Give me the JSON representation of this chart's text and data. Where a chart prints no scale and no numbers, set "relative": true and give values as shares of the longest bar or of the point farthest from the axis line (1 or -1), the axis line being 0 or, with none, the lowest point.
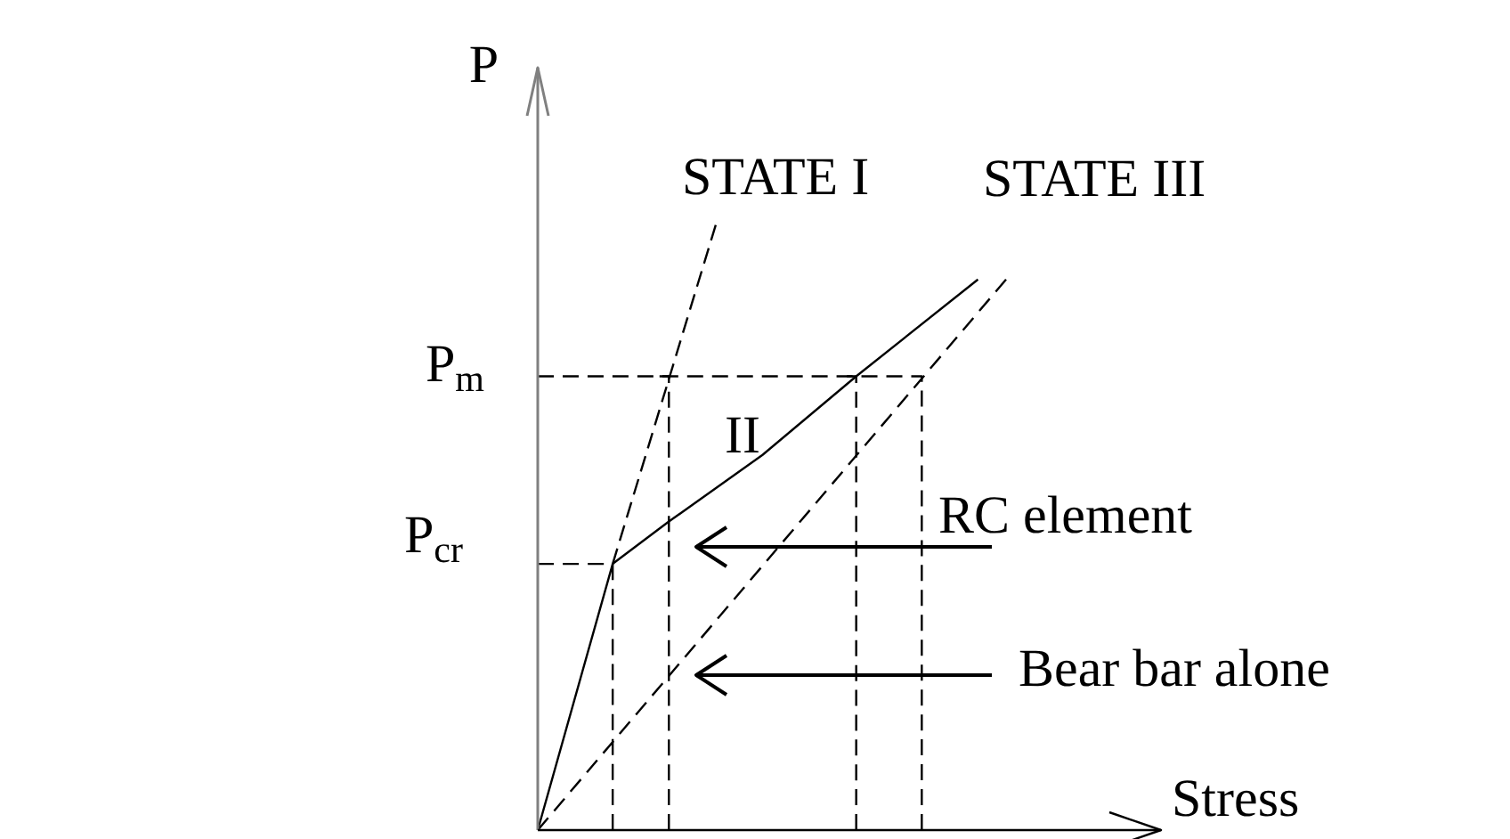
{
  "chart_data": {
    "type": "line",
    "relative": true,
    "xlabel": "Stress",
    "ylabel": "P",
    "categories": [
      null,
      null,
      null,
      null,
      null,
      null,
      null,
      null,
      null,
      null,
      null,
      null,
      null,
      null,
      null,
      null,
      null,
      null,
      null,
      null,
      null,
      null,
      null,
      null,
      null,
      null,
      null,
      null,
      null,
      null,
      null,
      null,
      null,
      null,
      null,
      null,
      null,
      null,
      null,
      null,
      null,
      null,
      null,
      null,
      null,
      null,
      null,
      null,
      null,
      null,
      null
    ],
    "series": [
      {
        "color": "#000000",
        "line_style": "dashed",
        "values": [
          null,
          null,
          null,
          null,
          null,
          null,
          null,
          null,
          0.44,
          null,
          null,
          null,
          null,
          null,
          null,
          null,
          null,
          null,
          null,
          1,
          null,
          null,
          null,
          null,
          null,
          null,
          null,
          null,
          null,
          null,
          null,
          null,
          null,
          null,
          null,
          null,
          null,
          null,
          null,
          null,
          null,
          null,
          null,
          null,
          null,
          null,
          null,
          null,
          null,
          null,
          null
        ]
      },
      {
        "color": "#000000",
        "line_style": "solid",
        "values": [
          0,
          null,
          null,
          null,
          null,
          null,
          null,
          null,
          0.44,
          null,
          null,
          null,
          null,
          null,
          0.51,
          null,
          null,
          null,
          null,
          null,
          null,
          null,
          null,
          null,
          0.62,
          null,
          null,
          null,
          null,
          null,
          null,
          null,
          null,
          null,
          0.75,
          null,
          null,
          null,
          null,
          null,
          null,
          null,
          null,
          null,
          null,
          null,
          null,
          0.91,
          null,
          null,
          null
        ]
      },
      {
        "color": "#000000",
        "line_style": "dashed",
        "values": [
          0,
          null,
          null,
          null,
          null,
          null,
          null,
          null,
          null,
          null,
          null,
          null,
          null,
          null,
          null,
          null,
          null,
          null,
          null,
          null,
          null,
          null,
          null,
          null,
          null,
          null,
          null,
          null,
          null,
          null,
          null,
          null,
          null,
          null,
          null,
          null,
          null,
          null,
          null,
          null,
          null,
          null,
          null,
          null,
          null,
          null,
          null,
          null,
          null,
          null,
          0.91
        ]
      },
      {
        "type": "step",
        "color": "#000000",
        "line_style": "dashed",
        "values": [
          0.44,
          null,
          null,
          null,
          null,
          null,
          null,
          null,
          0,
          null,
          null,
          null,
          null,
          null,
          null,
          null,
          null,
          null,
          null,
          null,
          null,
          null,
          null,
          null,
          null,
          null,
          null,
          null,
          null,
          null,
          null,
          null,
          null,
          null,
          null,
          null,
          null,
          null,
          null,
          null,
          null,
          null,
          null,
          null,
          null,
          null,
          null,
          null,
          null,
          null,
          null
        ]
      },
      {
        "type": "step",
        "color": "#000000",
        "line_style": "dashed",
        "values": [
          0.75,
          null,
          null,
          null,
          null,
          null,
          null,
          null,
          null,
          null,
          null,
          null,
          null,
          null,
          null,
          null,
          null,
          null,
          null,
          null,
          null,
          null,
          null,
          null,
          null,
          null,
          null,
          null,
          null,
          null,
          null,
          null,
          null,
          null,
          null,
          null,
          null,
          null,
          null,
          null,
          null,
          0,
          null,
          null,
          null,
          null,
          null,
          null,
          null,
          null,
          null
        ]
      },
      {
        "type": "step",
        "color": "#000000",
        "line_style": "dashed",
        "values": [
          null,
          null,
          null,
          null,
          null,
          null,
          null,
          null,
          null,
          null,
          null,
          null,
          null,
          0.75,
          0,
          null,
          null,
          null,
          null,
          null,
          null,
          null,
          null,
          null,
          null,
          null,
          null,
          null,
          null,
          null,
          null,
          null,
          null,
          null,
          null,
          null,
          null,
          null,
          null,
          null,
          null,
          null,
          null,
          null,
          null,
          null,
          null,
          null,
          null,
          null,
          null
        ]
      },
      {
        "type": "step",
        "color": "#000000",
        "line_style": "dashed",
        "values": [
          null,
          null,
          null,
          null,
          null,
          null,
          null,
          null,
          null,
          null,
          null,
          null,
          null,
          null,
          null,
          null,
          null,
          null,
          null,
          null,
          null,
          null,
          null,
          null,
          null,
          null,
          null,
          null,
          null,
          null,
          null,
          null,
          null,
          0.75,
          0,
          null,
          null,
          null,
          null,
          null,
          null,
          null,
          null,
          null,
          null,
          null,
          null,
          null,
          null,
          null,
          null
        ]
      }
    ],
    "annotations": [
      "STATE I",
      "STATE III",
      "II",
      "RC element",
      "Bear bar alone",
      "P$_{m}$",
      "P$_{cr}$"
    ]
  }
}
